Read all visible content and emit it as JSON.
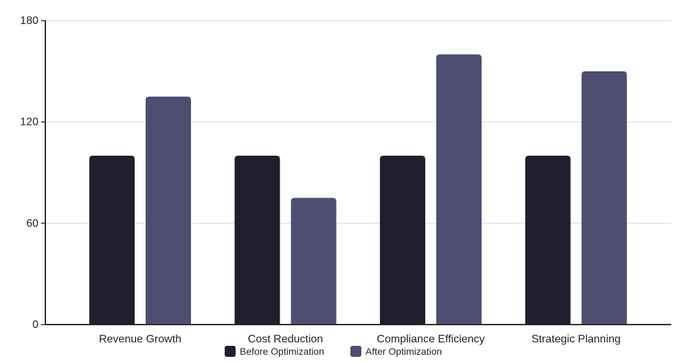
{
  "chart_data": {
    "type": "bar",
    "title": "",
    "xlabel": "",
    "ylabel": "",
    "categories": [
      "Revenue Growth",
      "Cost Reduction",
      "Compliance Efficiency",
      "Strategic Planning"
    ],
    "series": [
      {
        "name": "Before Optimization",
        "color": "#1f1f2e",
        "values": [
          100,
          100,
          100,
          100
        ]
      },
      {
        "name": "After Optimization",
        "color": "#4e4e72",
        "values": [
          135,
          75,
          160,
          150
        ]
      }
    ],
    "ylim": [
      0,
      180
    ],
    "yticks": [
      0,
      60,
      120,
      180
    ],
    "grid": true,
    "legend_position": "bottom-center"
  }
}
